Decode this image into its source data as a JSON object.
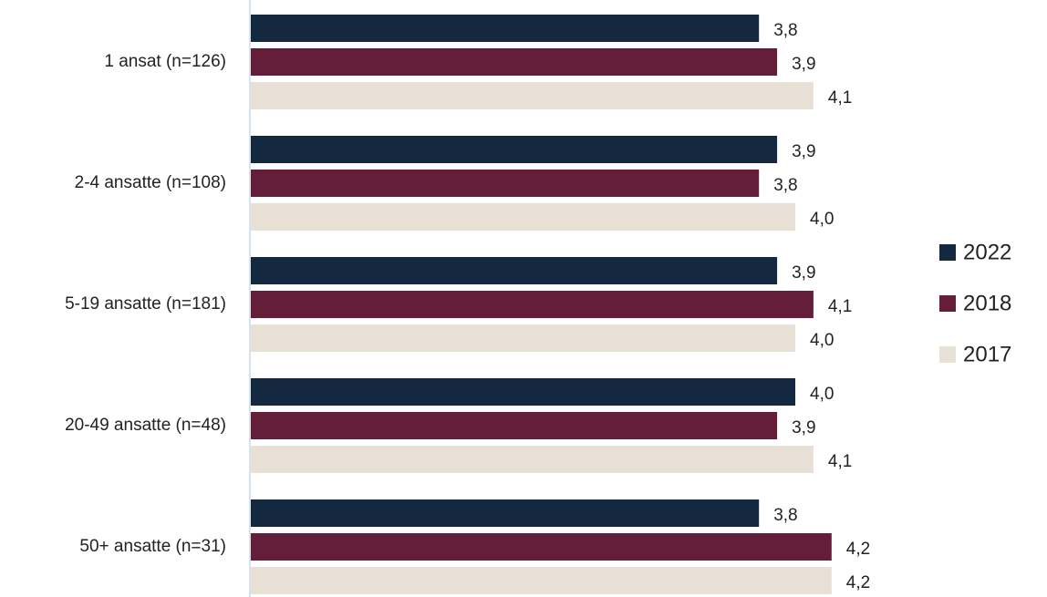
{
  "chart_data": {
    "type": "bar",
    "orientation": "horizontal",
    "categories": [
      "1 ansat (n=126)",
      "2-4 ansatte (n=108)",
      "5-19 ansatte (n=181)",
      "20-49 ansatte (n=48)",
      "50+ ansatte (n=31)"
    ],
    "xlim": [
      1,
      5
    ],
    "series": [
      {
        "name": "2022",
        "color": "#14293f",
        "values": [
          3.8,
          3.9,
          3.9,
          4.0,
          3.8
        ],
        "value_labels": [
          "3,8",
          "3,9",
          "3,9",
          "4,0",
          "3,8"
        ]
      },
      {
        "name": "2018",
        "color": "#641e3a",
        "values": [
          3.9,
          3.8,
          4.1,
          3.9,
          4.2
        ],
        "value_labels": [
          "3,9",
          "3,8",
          "4,1",
          "3,9",
          "4,2"
        ]
      },
      {
        "name": "2017",
        "color": "#e8e0d4",
        "values": [
          4.1,
          4.0,
          4.0,
          4.1,
          4.2
        ],
        "value_labels": [
          "4,1",
          "4,0",
          "4,0",
          "4,1",
          "4,2"
        ]
      }
    ],
    "legend": "right"
  }
}
